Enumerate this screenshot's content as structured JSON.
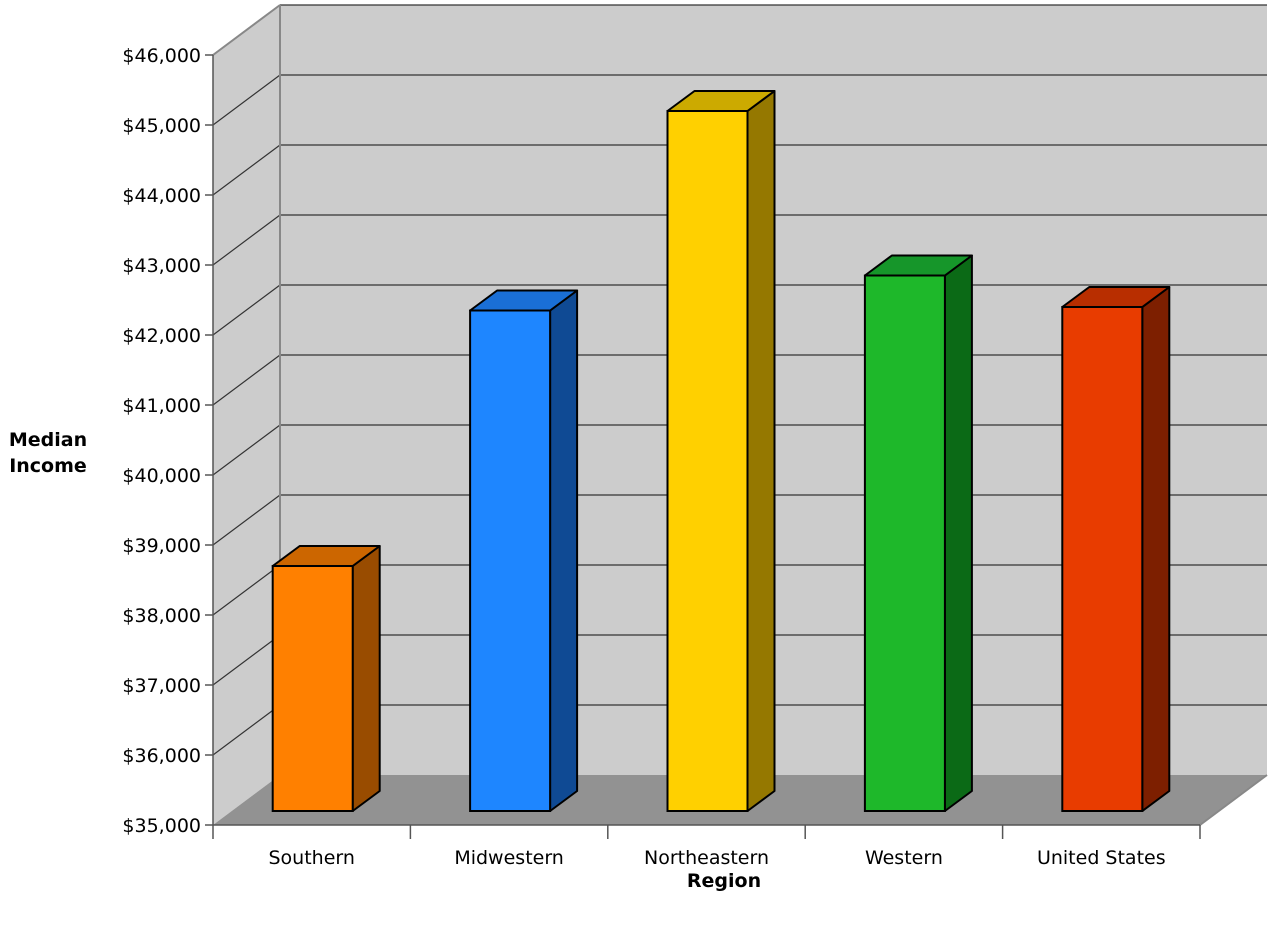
{
  "chart_data": {
    "type": "bar",
    "title": "",
    "xlabel": "Region",
    "ylabel_lines": [
      "Median",
      "Income"
    ],
    "categories": [
      "Southern",
      "Midwestern",
      "Northeastern",
      "Western",
      "United States"
    ],
    "values": [
      38500,
      42150,
      45000,
      42650,
      42200
    ],
    "ylim": [
      35000,
      46000
    ],
    "ytick_step": 1000,
    "yticks": [
      "$35,000",
      "$36,000",
      "$37,000",
      "$38,000",
      "$39,000",
      "$40,000",
      "$41,000",
      "$42,000",
      "$43,000",
      "$44,000",
      "$45,000",
      "$46,000"
    ],
    "grid": true,
    "three_d": true,
    "colors": [
      {
        "front": "#ff8000",
        "top": "#cc6600",
        "side": "#994c00"
      },
      {
        "front": "#1e86ff",
        "top": "#1a6fd6",
        "side": "#0f4a94"
      },
      {
        "front": "#ffd000",
        "top": "#ccaa00",
        "side": "#957800"
      },
      {
        "front": "#1eb82a",
        "top": "#16962a",
        "side": "#0b6a16"
      },
      {
        "front": "#e83c00",
        "top": "#b82e00",
        "side": "#7d1f00"
      }
    ],
    "wall_color": "#cccccc",
    "floor_color": "#929292"
  }
}
